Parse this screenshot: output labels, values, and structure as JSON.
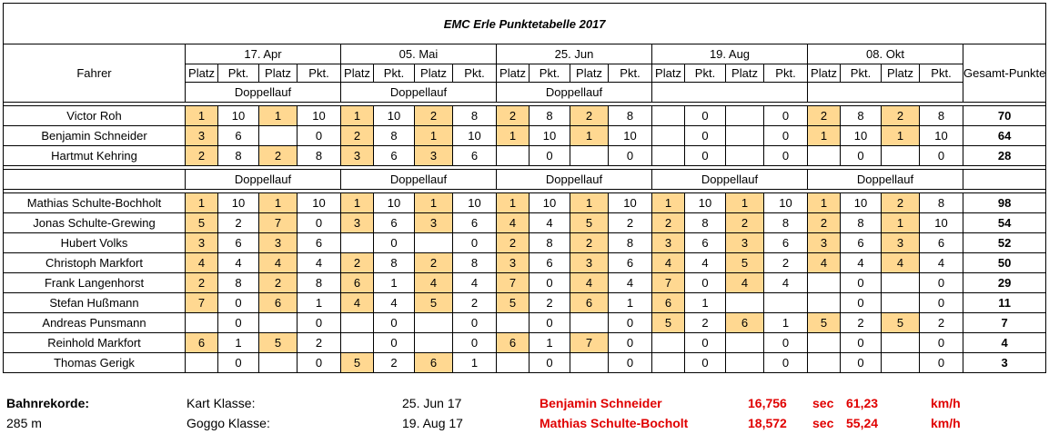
{
  "title": "EMC Erle  Punktetabelle 2017",
  "header": {
    "driver_label": "Fahrer",
    "total_label": "Gesamt-Punkte",
    "races": [
      "17. Apr",
      "05. Mai",
      "25. Jun",
      "19. Aug",
      "08. Okt"
    ],
    "platz": "Platz",
    "pkt": "Pkt.",
    "doppellauf": "Doppellauf"
  },
  "group1": {
    "doppellauf_flags": [
      true,
      true,
      true,
      false,
      false
    ],
    "rows": [
      {
        "name": "Victor Roh",
        "total": "70",
        "cells": [
          "1",
          "10",
          "1",
          "10",
          "1",
          "10",
          "2",
          "8",
          "2",
          "8",
          "2",
          "8",
          "",
          "0",
          "",
          "0",
          "2",
          "8",
          "2",
          "8"
        ]
      },
      {
        "name": "Benjamin Schneider",
        "total": "64",
        "cells": [
          "3",
          "6",
          "",
          "0",
          "2",
          "8",
          "1",
          "10",
          "1",
          "10",
          "1",
          "10",
          "",
          "0",
          "",
          "0",
          "1",
          "10",
          "1",
          "10"
        ]
      },
      {
        "name": "Hartmut Kehring",
        "total": "28",
        "cells": [
          "2",
          "8",
          "2",
          "8",
          "3",
          "6",
          "3",
          "6",
          "",
          "0",
          "",
          "0",
          "",
          "0",
          "",
          "0",
          "",
          "0",
          "",
          "0"
        ]
      }
    ]
  },
  "group2": {
    "doppellauf_flags": [
      true,
      true,
      true,
      true,
      true
    ],
    "rows": [
      {
        "name": "Mathias Schulte-Bochholt",
        "total": "98",
        "cells": [
          "1",
          "10",
          "1",
          "10",
          "1",
          "10",
          "1",
          "10",
          "1",
          "10",
          "1",
          "10",
          "1",
          "10",
          "1",
          "10",
          "1",
          "10",
          "2",
          "8"
        ]
      },
      {
        "name": "Jonas Schulte-Grewing",
        "total": "54",
        "cells": [
          "5",
          "2",
          "7",
          "0",
          "3",
          "6",
          "3",
          "6",
          "4",
          "4",
          "5",
          "2",
          "2",
          "8",
          "2",
          "8",
          "2",
          "8",
          "1",
          "10"
        ]
      },
      {
        "name": "Hubert Volks",
        "total": "52",
        "cells": [
          "3",
          "6",
          "3",
          "6",
          "",
          "0",
          "",
          "0",
          "2",
          "8",
          "2",
          "8",
          "3",
          "6",
          "3",
          "6",
          "3",
          "6",
          "3",
          "6"
        ]
      },
      {
        "name": "Christoph Markfort",
        "total": "50",
        "cells": [
          "4",
          "4",
          "4",
          "4",
          "2",
          "8",
          "2",
          "8",
          "3",
          "6",
          "3",
          "6",
          "4",
          "4",
          "5",
          "2",
          "4",
          "4",
          "4",
          "4"
        ]
      },
      {
        "name": "Frank Langenhorst",
        "total": "29",
        "cells": [
          "2",
          "8",
          "2",
          "8",
          "6",
          "1",
          "4",
          "4",
          "7",
          "0",
          "4",
          "4",
          "7",
          "0",
          "4",
          "4",
          "",
          "0",
          "",
          "0"
        ]
      },
      {
        "name": "Stefan Hußmann",
        "total": "11",
        "cells": [
          "7",
          "0",
          "6",
          "1",
          "4",
          "4",
          "5",
          "2",
          "5",
          "2",
          "6",
          "1",
          "6",
          "1",
          "",
          "",
          "",
          "0",
          "",
          "0"
        ]
      },
      {
        "name": "Andreas Punsmann",
        "total": "7",
        "cells": [
          "",
          "0",
          "",
          "0",
          "",
          "0",
          "",
          "0",
          "",
          "0",
          "",
          "0",
          "5",
          "2",
          "6",
          "1",
          "5",
          "2",
          "5",
          "2"
        ]
      },
      {
        "name": "Reinhold Markfort",
        "total": "4",
        "cells": [
          "6",
          "1",
          "5",
          "2",
          "",
          "0",
          "",
          "0",
          "6",
          "1",
          "7",
          "0",
          "",
          "0",
          "",
          "0",
          "",
          "0",
          "",
          "0"
        ]
      },
      {
        "name": "Thomas Gerigk",
        "total": "3",
        "cells": [
          "",
          "0",
          "",
          "0",
          "5",
          "2",
          "6",
          "1",
          "",
          "0",
          "",
          "0",
          "",
          "0",
          "",
          "0",
          "",
          "0",
          "",
          "0"
        ]
      }
    ]
  },
  "footer": {
    "label": "Bahnrekorde:",
    "distance": "285 m",
    "records": [
      {
        "klasse": "Kart Klasse:",
        "date": "25. Jun 17",
        "driver": "Benjamin Schneider",
        "time": "16,756",
        "time_unit": "sec",
        "speed": "61,23",
        "speed_unit": "km/h"
      },
      {
        "klasse": "Goggo Klasse:",
        "date": "19. Aug 17",
        "driver": "Mathias Schulte-Bocholt",
        "time": "18,572",
        "time_unit": "sec",
        "speed": "55,24",
        "speed_unit": "km/h"
      }
    ]
  },
  "colors": {
    "place_highlight": "#ffd891",
    "record_text": "#e00000"
  }
}
